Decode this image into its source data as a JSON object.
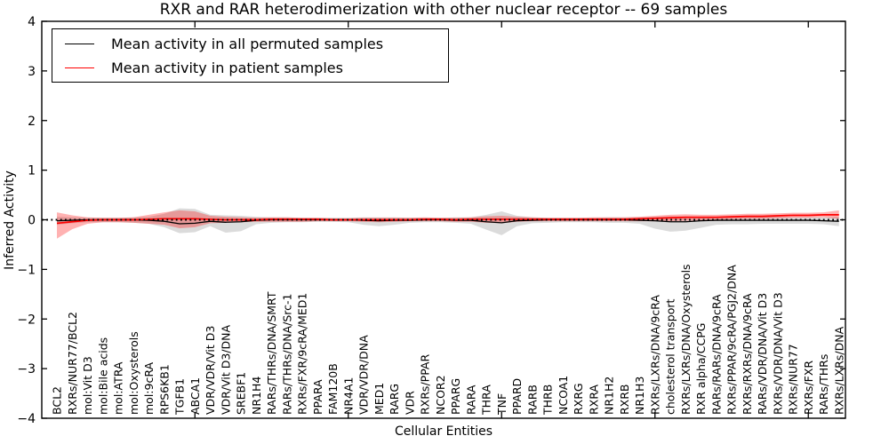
{
  "title": "RXR and RAR heterodimerization with other nuclear receptor -- 69 samples",
  "legend": {
    "entries": [
      {
        "label": "Mean activity in all permuted samples",
        "color": "#000000"
      },
      {
        "label": "Mean activity in patient samples",
        "color": "#ff0000"
      }
    ]
  },
  "chart_data": {
    "type": "line",
    "title": "RXR and RAR heterodimerization with other nuclear receptor -- 69 samples",
    "xlabel": "Cellular Entities",
    "ylabel": "Inferred Activity",
    "ylim": [
      -4,
      4
    ],
    "yticks": [
      4,
      3,
      2,
      1,
      0,
      -1,
      -2,
      -3,
      -4
    ],
    "ytick_labels": [
      "4",
      "3",
      "2",
      "1",
      "0",
      "−1",
      "−2",
      "−3",
      "−4"
    ],
    "xtick_mark_indices": [
      9,
      19,
      29,
      39,
      49
    ],
    "grid": false,
    "legend_position": "upper left",
    "zero_line": {
      "style": "dotted",
      "color": "#000000",
      "y": 0
    },
    "categories": [
      "BCL2",
      "RXRs/NUR77/BCL2",
      "mol:Vit D3",
      "mol:Bile acids",
      "mol:ATRA",
      "mol:Oxysterols",
      "mol:9cRA",
      "RPS6KB1",
      "TGFB1",
      "ABCA1",
      "VDR/VDR/Vit D3",
      "VDR/Vit D3/DNA",
      "SREBF1",
      "NR1H4",
      "RARs/THRs/DNA/SMRT",
      "RARs/THRs/DNA/Src-1",
      "RXRs/FXR/9cRA/MED1",
      "PPARA",
      "FAM120B",
      "NR4A1",
      "VDR/VDR/DNA",
      "MED1",
      "RARG",
      "VDR",
      "RXRs/PPAR",
      "NCOR2",
      "PPARG",
      "RARA",
      "THRA",
      "TNF",
      "PPARD",
      "RARB",
      "THRB",
      "NCOA1",
      "RXRG",
      "RXRA",
      "NR1H2",
      "RXRB",
      "NR1H3",
      "RXRs/LXRs/DNA/9cRA",
      "cholesterol transport",
      "RXRs/LXRs/DNA/Oxysterols",
      "RXR alpha/CCPG",
      "RARs/RARs/DNA/9cRA",
      "RXRs/PPAR/9cRA/PGJ2/DNA",
      "RXRs/RXRs/DNA/9cRA",
      "RARs/VDR/DNA/Vit D3",
      "RXRs/VDR/DNA/Vit D3",
      "RXRs/NUR77",
      "RXRs/FXR",
      "RARs/THRs",
      "RXRs/LXRs/DNA"
    ],
    "series": [
      {
        "name": "Mean activity in all permuted samples",
        "color": "#000000",
        "values": [
          -0.02,
          -0.01,
          0,
          0,
          0,
          0,
          -0.01,
          -0.03,
          -0.08,
          -0.07,
          -0.03,
          -0.05,
          -0.04,
          -0.01,
          0,
          0,
          0,
          0,
          0,
          0,
          -0.01,
          -0.02,
          -0.01,
          -0.01,
          0,
          0,
          -0.01,
          -0.01,
          -0.04,
          -0.06,
          -0.02,
          -0.01,
          0,
          0,
          0,
          0,
          0,
          0,
          -0.01,
          -0.02,
          -0.04,
          -0.04,
          -0.02,
          -0.01,
          -0.01,
          -0.01,
          -0.01,
          -0.01,
          -0.01,
          -0.01,
          -0.02,
          -0.03
        ]
      },
      {
        "name": "Mean activity in patient samples",
        "color": "#ff0000",
        "values": [
          -0.07,
          -0.04,
          -0.01,
          0,
          0,
          0,
          0.01,
          0.02,
          0.02,
          0.02,
          0.01,
          0,
          0,
          0,
          0.01,
          0.01,
          0.01,
          0.01,
          0,
          0,
          0,
          0,
          0,
          0,
          0.01,
          0.01,
          0,
          0.01,
          0.01,
          0.01,
          0.01,
          0.01,
          0.01,
          0.01,
          0.01,
          0.01,
          0.01,
          0.01,
          0.02,
          0.03,
          0.04,
          0.05,
          0.05,
          0.05,
          0.06,
          0.07,
          0.07,
          0.08,
          0.09,
          0.09,
          0.1,
          0.1
        ]
      }
    ],
    "bands": [
      {
        "name": "permuted-range",
        "color": "#000000",
        "opacity": 0.14,
        "upper": [
          0.06,
          0.05,
          0.04,
          0.04,
          0.04,
          0.05,
          0.06,
          0.12,
          0.23,
          0.22,
          0.1,
          0.09,
          0.08,
          0.06,
          0.05,
          0.05,
          0.04,
          0.04,
          0.04,
          0.04,
          0.05,
          0.05,
          0.05,
          0.04,
          0.04,
          0.04,
          0.05,
          0.05,
          0.1,
          0.17,
          0.08,
          0.05,
          0.04,
          0.04,
          0.04,
          0.04,
          0.05,
          0.05,
          0.05,
          0.06,
          0.07,
          0.07,
          0.06,
          0.06,
          0.06,
          0.06,
          0.06,
          0.06,
          0.05,
          0.05,
          0.05,
          0.06
        ],
        "lower": [
          -0.1,
          -0.07,
          -0.05,
          -0.05,
          -0.05,
          -0.06,
          -0.08,
          -0.15,
          -0.27,
          -0.25,
          -0.13,
          -0.26,
          -0.23,
          -0.09,
          -0.06,
          -0.05,
          -0.05,
          -0.04,
          -0.04,
          -0.05,
          -0.1,
          -0.13,
          -0.1,
          -0.06,
          -0.05,
          -0.05,
          -0.06,
          -0.08,
          -0.2,
          -0.31,
          -0.13,
          -0.07,
          -0.06,
          -0.05,
          -0.05,
          -0.05,
          -0.06,
          -0.06,
          -0.08,
          -0.18,
          -0.24,
          -0.22,
          -0.16,
          -0.1,
          -0.09,
          -0.09,
          -0.08,
          -0.08,
          -0.08,
          -0.08,
          -0.09,
          -0.13
        ]
      },
      {
        "name": "patient-range",
        "color": "#ff0000",
        "opacity": 0.3,
        "upper": [
          0.15,
          0.09,
          0.05,
          0.04,
          0.04,
          0.05,
          0.1,
          0.15,
          0.19,
          0.17,
          0.08,
          0.06,
          0.05,
          0.04,
          0.05,
          0.05,
          0.04,
          0.04,
          0.03,
          0.03,
          0.04,
          0.04,
          0.04,
          0.04,
          0.05,
          0.04,
          0.04,
          0.05,
          0.07,
          0.08,
          0.06,
          0.05,
          0.04,
          0.04,
          0.04,
          0.05,
          0.05,
          0.05,
          0.06,
          0.08,
          0.1,
          0.11,
          0.1,
          0.1,
          0.11,
          0.12,
          0.12,
          0.13,
          0.14,
          0.14,
          0.15,
          0.19
        ],
        "lower": [
          -0.38,
          -0.19,
          -0.08,
          -0.05,
          -0.05,
          -0.06,
          -0.08,
          -0.1,
          -0.17,
          -0.15,
          -0.07,
          -0.06,
          -0.05,
          -0.04,
          -0.04,
          -0.04,
          -0.04,
          -0.03,
          -0.03,
          -0.03,
          -0.04,
          -0.05,
          -0.04,
          -0.03,
          -0.03,
          -0.03,
          -0.04,
          -0.04,
          -0.06,
          -0.07,
          -0.04,
          -0.03,
          -0.03,
          -0.03,
          -0.03,
          -0.03,
          -0.03,
          -0.03,
          -0.03,
          -0.03,
          -0.03,
          -0.02,
          -0.01,
          0,
          0.01,
          0.02,
          0.02,
          0.03,
          0.04,
          0.04,
          0.05,
          0.02
        ]
      }
    ]
  }
}
